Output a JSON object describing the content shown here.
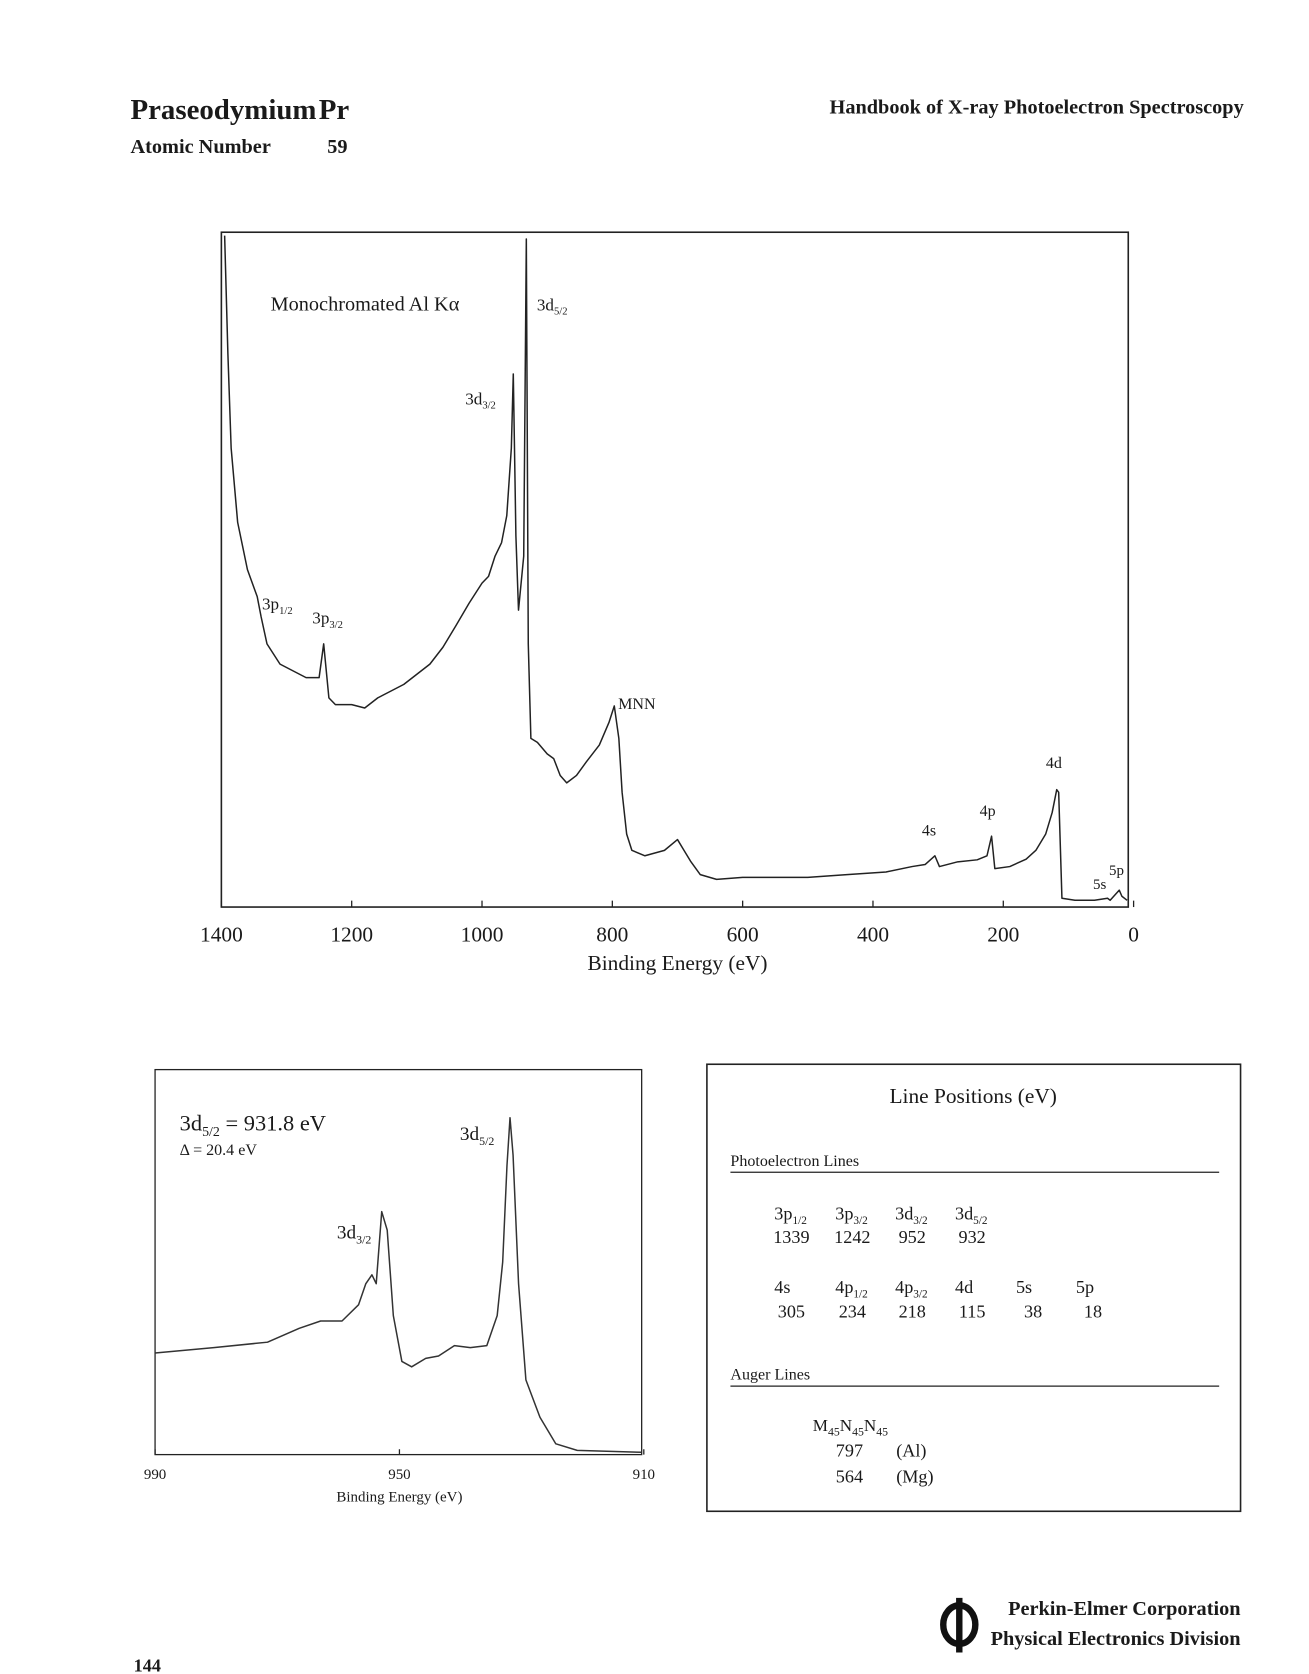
{
  "header": {
    "title": "Praseodymium",
    "symbol": "Pr",
    "atomic_number_label": "Atomic Number",
    "atomic_number": 59,
    "book": "Handbook of X-ray Photoelectron Spectroscopy"
  },
  "chart_data": [
    {
      "type": "line",
      "x_label": "Binding Energy (eV)",
      "xlim": [
        1400,
        0
      ],
      "xticks": [
        1400,
        1200,
        1000,
        800,
        600,
        400,
        200,
        0
      ],
      "ylim": [
        0,
        100
      ],
      "annotations": [
        {
          "text": "Monochromated Al Kα"
        },
        {
          "text": "3d",
          "sub": "5/2"
        },
        {
          "text": "3d",
          "sub": "3/2"
        },
        {
          "text": "3p",
          "sub": "1/2"
        },
        {
          "text": "3p",
          "sub": "3/2"
        },
        {
          "text": "MNN"
        },
        {
          "text": "4d"
        },
        {
          "text": "4p"
        },
        {
          "text": "4s"
        },
        {
          "text": "5s"
        },
        {
          "text": "5p"
        }
      ],
      "x": [
        1395,
        1390,
        1385,
        1375,
        1360,
        1345,
        1339,
        1330,
        1310,
        1290,
        1270,
        1250,
        1243,
        1235,
        1225,
        1200,
        1180,
        1160,
        1140,
        1120,
        1100,
        1080,
        1060,
        1040,
        1020,
        1000,
        990,
        980,
        970,
        962,
        955,
        952,
        948,
        944,
        940,
        936,
        932,
        929,
        925,
        915,
        900,
        890,
        880,
        870,
        855,
        840,
        820,
        805,
        797,
        790,
        785,
        778,
        770,
        750,
        720,
        700,
        690,
        680,
        665,
        640,
        600,
        560,
        500,
        440,
        380,
        340,
        320,
        305,
        298,
        270,
        240,
        225,
        218,
        213,
        190,
        165,
        150,
        135,
        125,
        118,
        115,
        110,
        90,
        60,
        40,
        36,
        22,
        18,
        10
      ],
      "series": [
        {
          "color": "#222222",
          "values": [
            99.5,
            82,
            68,
            57,
            50,
            46,
            43,
            39,
            36,
            35,
            34,
            34,
            39,
            31,
            30,
            30,
            29.5,
            31,
            32,
            33,
            34.5,
            36,
            38.5,
            41.7,
            45,
            48,
            49,
            52,
            54,
            58,
            68,
            79,
            55,
            44,
            48,
            52,
            99,
            39,
            25,
            24.4,
            22.7,
            22,
            19.5,
            18.4,
            19.5,
            21.5,
            24,
            27.4,
            29.8,
            25,
            17,
            10.8,
            8.4,
            7.6,
            8.4,
            10,
            8.4,
            6.8,
            4.8,
            4.1,
            4.4,
            4.4,
            4.4,
            4.8,
            5.2,
            6,
            6.3,
            7.6,
            6,
            6.7,
            7,
            7.6,
            10.5,
            5.7,
            6,
            7.1,
            8.4,
            10.8,
            14,
            17.4,
            17,
            1.3,
            1,
            1,
            1.3,
            1,
            2.5,
            1.6,
            1
          ]
        }
      ]
    },
    {
      "type": "line",
      "x_label": "Binding Energy (eV)",
      "xlim": [
        990,
        910
      ],
      "xticks": [
        990,
        950,
        910
      ],
      "ylim": [
        0,
        100
      ],
      "annotations": [
        {
          "text": "3d",
          "sub": "5/2",
          "tail": " = 931.8 eV"
        },
        {
          "text": "Δ = 20.4 eV"
        },
        {
          "text": "3d",
          "sub": "3/2"
        },
        {
          "text": "3d",
          "sub": "5/2"
        }
      ],
      "x": [
        990,
        980.4,
        971.6,
        966.4,
        962.9,
        959.4,
        956.7,
        955.5,
        954.5,
        953.8,
        952.9,
        952.0,
        951.0,
        949.6,
        948.0,
        945.7,
        943.6,
        941.0,
        938.4,
        935.7,
        934.0,
        933.1,
        932.4,
        931.9,
        931.4,
        930.5,
        929.3,
        927.0,
        924.4,
        920.9,
        910.4
      ],
      "series": [
        {
          "color": "#333333",
          "values": [
            26.4,
            27.8,
            29.2,
            32.8,
            34.7,
            34.7,
            38.9,
            44.4,
            46.7,
            44.4,
            63.1,
            58.3,
            36.1,
            24.2,
            22.8,
            25,
            25.6,
            28.3,
            27.8,
            28.3,
            36.1,
            50,
            75,
            87.5,
            77.8,
            44.4,
            19.4,
            9.7,
            2.8,
            1.1,
            0.6
          ]
        }
      ]
    }
  ],
  "table": {
    "title": "Line Positions (eV)",
    "photoelectron": {
      "title": "Photoelectron Lines",
      "rows": [
        {
          "labels": [
            {
              "text": "3p",
              "sub": "1/2"
            },
            {
              "text": "3p",
              "sub": "3/2"
            },
            {
              "text": "3d",
              "sub": "3/2"
            },
            {
              "text": "3d",
              "sub": "5/2"
            }
          ],
          "values": [
            1339,
            1242,
            952,
            932
          ]
        },
        {
          "labels": [
            {
              "text": "4s"
            },
            {
              "text": "4p",
              "sub": "1/2"
            },
            {
              "text": "4p",
              "sub": "3/2"
            },
            {
              "text": "4d"
            },
            {
              "text": "5s"
            },
            {
              "text": "5p"
            }
          ],
          "values": [
            305,
            234,
            218,
            115,
            38,
            18
          ]
        }
      ]
    },
    "auger": {
      "title": "Auger Lines",
      "transition": [
        {
          "text": "M",
          "sub": "45"
        },
        {
          "text": "N",
          "sub": "45"
        },
        {
          "text": "N",
          "sub": "45"
        }
      ],
      "rows": [
        {
          "value": 797,
          "source": "(Al)"
        },
        {
          "value": 564,
          "source": "(Mg)"
        }
      ]
    }
  },
  "footer": {
    "page": 144,
    "company": "Perkin-Elmer Corporation",
    "division": "Physical Electronics Division"
  }
}
